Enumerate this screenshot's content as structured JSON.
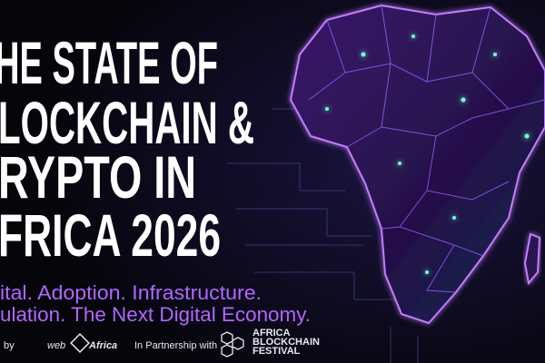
{
  "title": {
    "lines": [
      "HE STATE OF",
      "LOCKCHAIN &",
      "RYPTO IN",
      "FRICA 2026"
    ]
  },
  "subtitle": {
    "lines": [
      "ital. Adoption. Infrastructure.",
      "ulation. The Next Digital Economy."
    ]
  },
  "footer": {
    "by": "by",
    "brand": {
      "left": "web",
      "right": "Africa"
    },
    "partner_intro": "In Partnership with",
    "partner_name": [
      "AFRICA",
      "BLOCKCHAIN",
      "FESTIVAL"
    ]
  }
}
